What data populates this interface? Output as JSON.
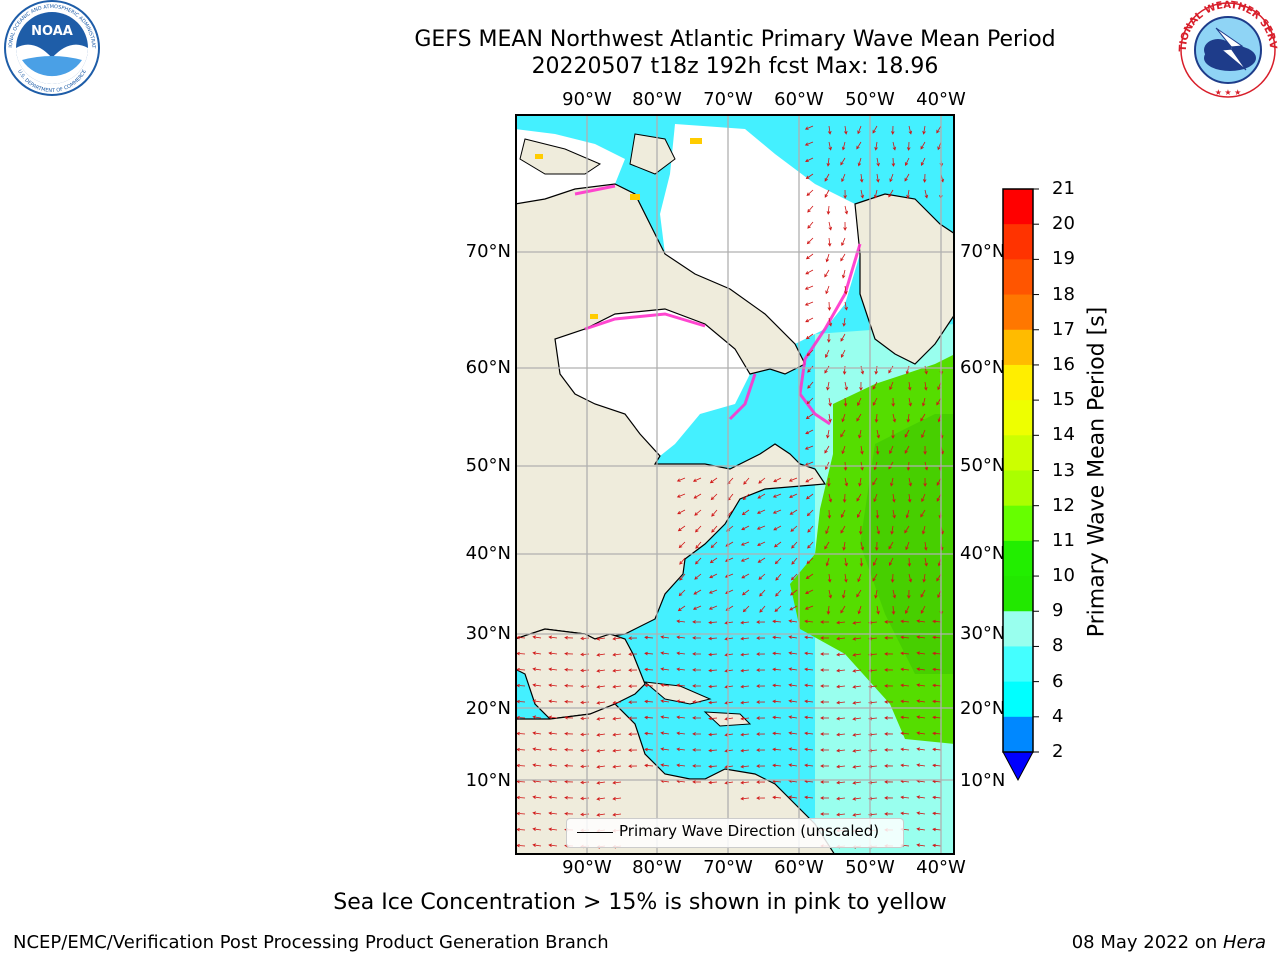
{
  "title": {
    "line1": "GEFS MEAN Northwest Atlantic Primary Wave Mean Period",
    "line2": "20220507 t18z 192h fcst   Max: 18.96"
  },
  "map": {
    "lon_labels": [
      "90°W",
      "80°W",
      "70°W",
      "60°W",
      "50°W",
      "40°W"
    ],
    "lat_labels_left": [
      "70°N",
      "60°N",
      "50°N",
      "40°N",
      "30°N",
      "20°N",
      "10°N"
    ],
    "lat_labels_right": [
      "70°N",
      "60°N",
      "50°N",
      "40°N",
      "30°N",
      "20°N",
      "10°N"
    ],
    "legend_label": "Primary Wave Direction (unscaled)",
    "gridlines": true
  },
  "colorbar": {
    "label": "Primary Wave Mean Period [s]",
    "ticks": [
      "21",
      "20",
      "19",
      "18",
      "17",
      "16",
      "15",
      "14",
      "13",
      "12",
      "11",
      "10",
      "9",
      "8",
      "6",
      "4",
      "2"
    ],
    "colors": [
      "#ff0000",
      "#ff3300",
      "#ff5500",
      "#ff7700",
      "#ff9900",
      "#ffbb00",
      "#ffee00",
      "#eeff00",
      "#ccff00",
      "#aaff00",
      "#66ff00",
      "#22ee00",
      "#22e800",
      "#55ff88",
      "#99ffee",
      "#44ffff",
      "#00ffff",
      "#0088ff",
      "#0000ff"
    ]
  },
  "colors": {
    "land": "#efecdc",
    "ocean_short": "#44f0ff",
    "ocean_light": "#99ffee",
    "ocean_green": "#55dd00",
    "ocean_orange": "#ff6600",
    "ice": "#ff33cc",
    "arrows": "#d01515",
    "noaa_blue": "#1e5da8",
    "nws_red": "#d81e2a"
  },
  "note": "Sea Ice Concentration > 15% is shown in pink to yellow",
  "footer": {
    "left": "NCEP/EMC/Verification Post Processing Product Generation Branch",
    "right_date": "08 May 2022 on ",
    "right_machine": "Hera"
  },
  "logos": {
    "noaa": {
      "name": "NOAA",
      "ring_text": "NATIONAL OCEANIC AND ATMOSPHERIC ADMINISTRATION",
      "ring_text_bottom": "U.S. DEPARTMENT OF COMMERCE"
    },
    "nws": {
      "ring_text": "NATIONAL WEATHER SERVICE"
    }
  }
}
